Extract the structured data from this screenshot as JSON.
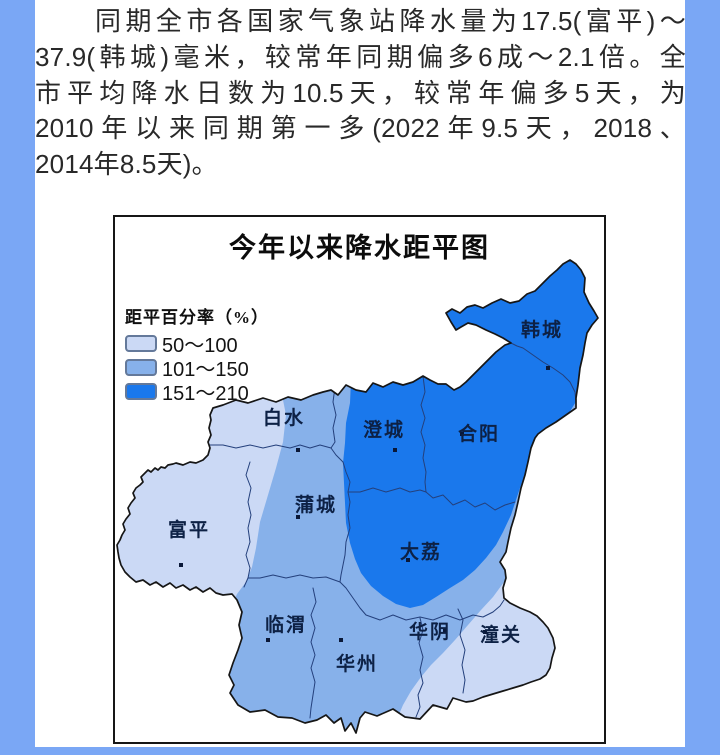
{
  "theme": {
    "side_bar_color": "#7aa7f5",
    "map_border_color": "#161616",
    "county_line_color": "#24407c",
    "station_dot_color": "#0a1838"
  },
  "article": {
    "lines": [
      "同期全市各国家气象站降水量为17.5(富平)～",
      "37.9(韩城)毫米，较常年同期偏多6成～2.1倍。全",
      "市平均降水日数为10.5天，较常年偏多5天，为",
      "2010年以来同期第一多(2022年9.5天，2018、",
      "2014年8.5天)。"
    ]
  },
  "map": {
    "title": "今年以来降水距平图",
    "legend": {
      "title": "距平百分率（%）",
      "items": [
        {
          "label": "50～100",
          "color": "#cbd9f5"
        },
        {
          "label": "101～150",
          "color": "#87b1ea"
        },
        {
          "label": "151～210",
          "color": "#1a78ec"
        }
      ]
    },
    "counties": [
      {
        "name": "韩城",
        "label": [
          429,
          114
        ],
        "dot": [
          435,
          153
        ]
      },
      {
        "name": "白水",
        "label": [
          171,
          202
        ],
        "dot": [
          185,
          235
        ]
      },
      {
        "name": "澄城",
        "label": [
          271,
          214
        ],
        "dot": [
          282,
          235
        ]
      },
      {
        "name": "合阳",
        "label": [
          366,
          218
        ],
        "dot": [
          349,
          219
        ]
      },
      {
        "name": "蒲城",
        "label": [
          203,
          289
        ],
        "dot": [
          185,
          302
        ]
      },
      {
        "name": "富平",
        "label": [
          76,
          314
        ],
        "dot": [
          68,
          350
        ]
      },
      {
        "name": "大荔",
        "label": [
          308,
          336
        ],
        "dot": [
          295,
          345
        ]
      },
      {
        "name": "临渭",
        "label": [
          173,
          409
        ],
        "dot": [
          155,
          425
        ]
      },
      {
        "name": "华州",
        "label": [
          244,
          448
        ],
        "dot": [
          228,
          425
        ]
      },
      {
        "name": "华阴",
        "label": [
          317,
          416
        ],
        "dot": [
          332,
          416
        ]
      },
      {
        "name": "潼关",
        "label": [
          388,
          419
        ],
        "dot": [
          372,
          417
        ]
      }
    ]
  }
}
